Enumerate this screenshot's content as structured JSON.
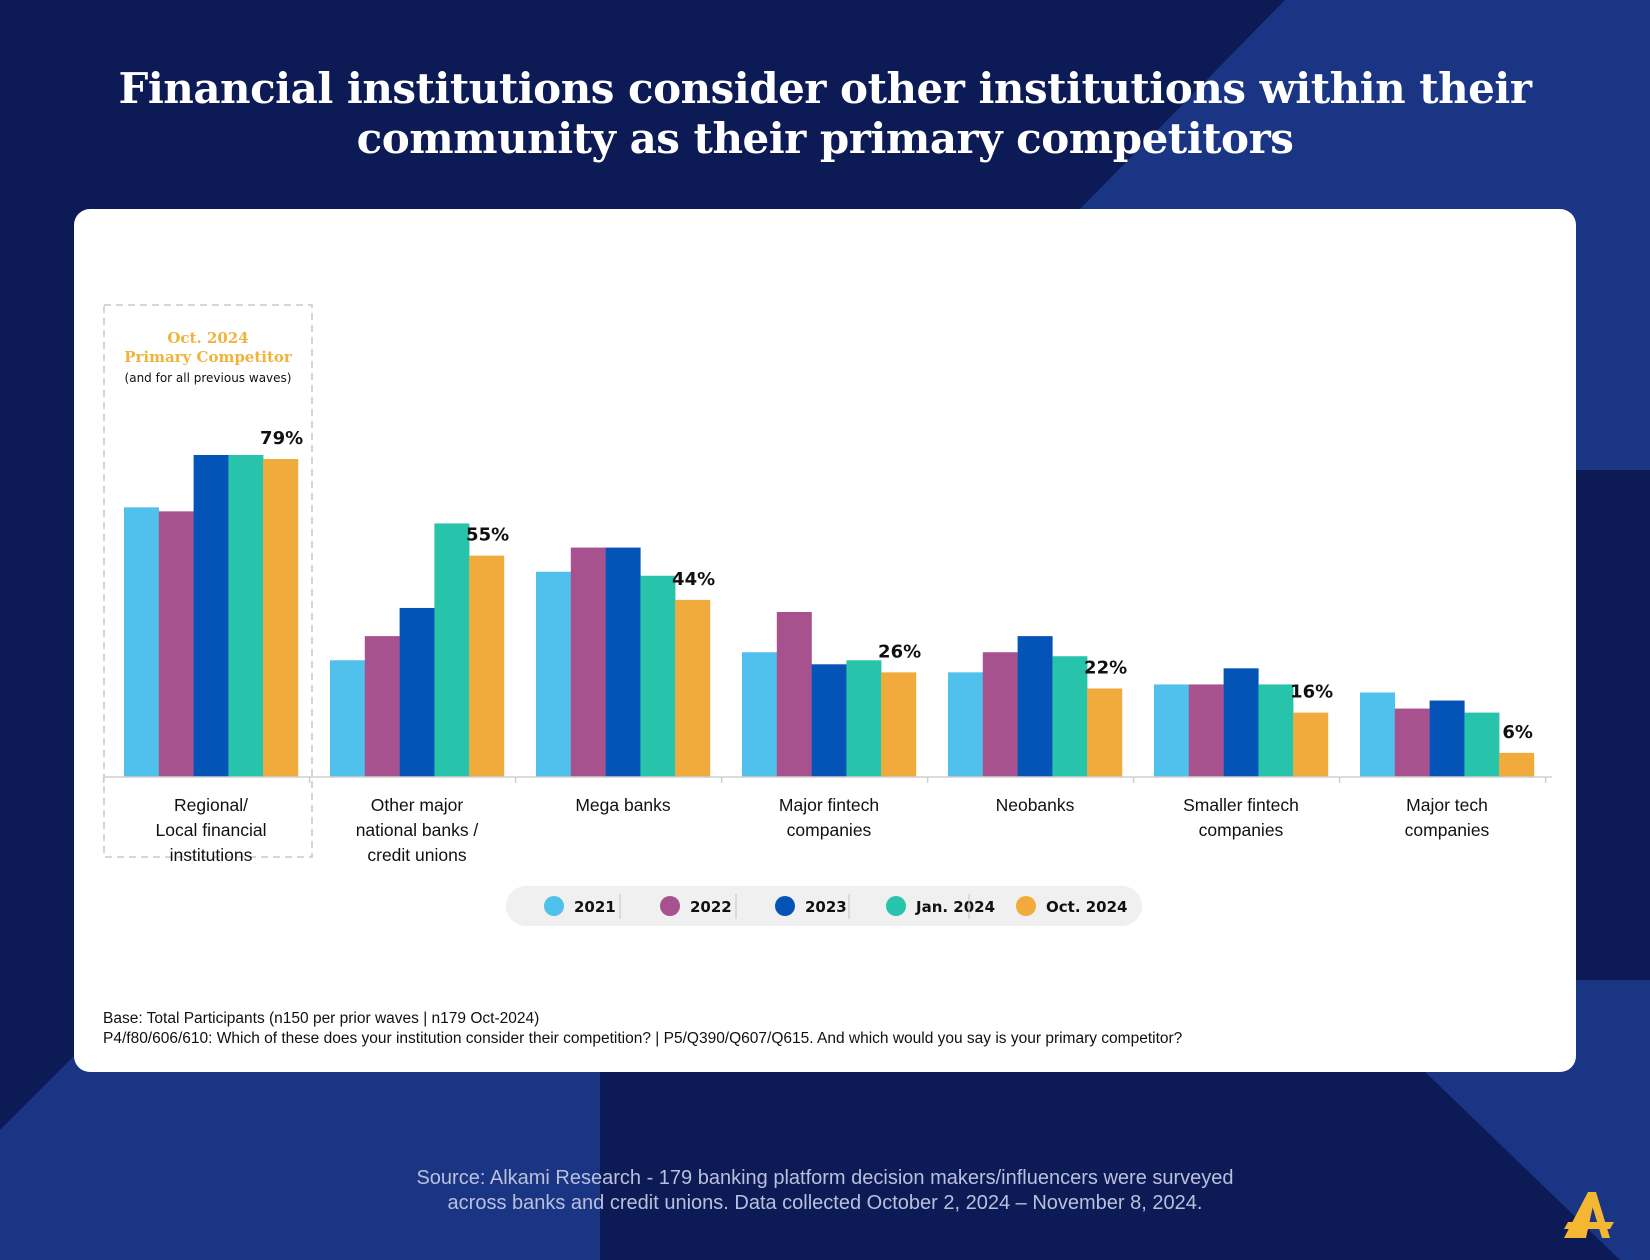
{
  "title_lines": [
    "Financial institutions consider other institutions within their",
    "community as their primary competitors"
  ],
  "highlight": {
    "line1": "Oct. 2024",
    "line2": "Primary Competitor",
    "line3": "(and for all previous waves)"
  },
  "footnotes": [
    "Base: Total Participants (n150 per prior waves | n179 Oct-2024)",
    "P4/f80/606/610: Which of these does your institution consider their competition? | P5/Q390/Q607/Q615. And which would you say is your primary competitor?"
  ],
  "source_lines": [
    "Source: Alkami Research -  179 banking platform decision makers/influencers were surveyed",
    "across banks and credit unions. Data collected October 2, 2024 – November 8, 2024."
  ],
  "colors": {
    "background": "#0c1a55",
    "accent_stripe": "#1b3585",
    "highlight_text": "#f0b33c",
    "logo": "#f5b731"
  },
  "chart_data": {
    "type": "bar",
    "categories": [
      [
        "Regional/",
        "Local financial",
        "institutions"
      ],
      [
        "Other major",
        "national banks /",
        "credit unions"
      ],
      [
        "Mega banks"
      ],
      [
        "Major fintech",
        "companies"
      ],
      [
        "Neobanks"
      ],
      [
        "Smaller fintech",
        "companies"
      ],
      [
        "Major tech",
        "companies"
      ]
    ],
    "series": [
      {
        "name": "2021",
        "color": "#50c0ec",
        "values": [
          67,
          29,
          51,
          31,
          26,
          23,
          21
        ]
      },
      {
        "name": "2022",
        "color": "#a8518f",
        "values": [
          66,
          35,
          57,
          41,
          31,
          23,
          17
        ]
      },
      {
        "name": "2023",
        "color": "#0454b8",
        "values": [
          80,
          42,
          57,
          28,
          35,
          27,
          19
        ]
      },
      {
        "name": "Jan. 2024",
        "color": "#28c3ab",
        "values": [
          80,
          63,
          50,
          29,
          30,
          23,
          16
        ]
      },
      {
        "name": "Oct. 2024",
        "color": "#f1ab3c",
        "values": [
          79,
          55,
          44,
          26,
          22,
          16,
          6
        ]
      }
    ],
    "data_labels": [
      "79%",
      "55%",
      "44%",
      "26%",
      "22%",
      "16%",
      "6%"
    ],
    "ylim": [
      0,
      80
    ],
    "grid": false,
    "legend_position": "bottom",
    "highlighted_category": 0
  }
}
